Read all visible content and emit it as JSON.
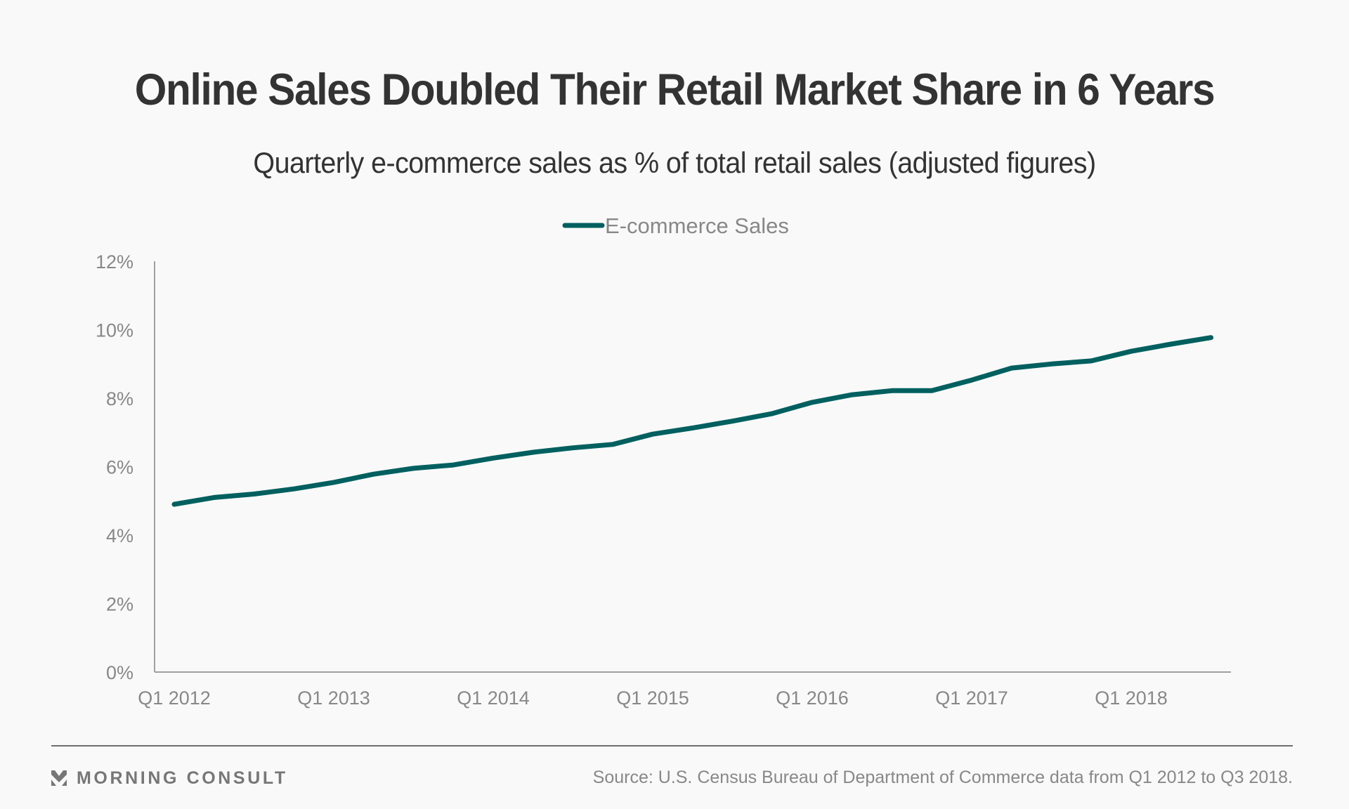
{
  "header": {
    "title": "Online Sales Doubled Their Retail Market Share in 6 Years",
    "subtitle": "Quarterly e-commerce sales as % of total retail sales (adjusted figures)"
  },
  "footer": {
    "brand": "MORNING CONSULT",
    "brand_icon": "morning-consult-chevron-logo",
    "source": "Source: U.S. Census Bureau of Department of Commerce data from Q1 2012 to Q3 2018."
  },
  "colors": {
    "series": "#005f5f",
    "axis": "#a0a0a0",
    "text": "#333333",
    "muted": "#888888",
    "background": "#f9f9f9"
  },
  "chart_data": {
    "type": "line",
    "title": "Online Sales Doubled Their Retail Market Share in 6 Years",
    "subtitle": "Quarterly e-commerce sales as % of total retail sales (adjusted figures)",
    "xlabel": "",
    "ylabel": "",
    "legend": {
      "position": "top-center",
      "entries": [
        "E-commerce Sales"
      ]
    },
    "grid": false,
    "ylim": [
      0,
      12
    ],
    "yticks": [
      "0%",
      "2%",
      "4%",
      "6%",
      "8%",
      "10%",
      "12%"
    ],
    "ytick_values": [
      0,
      2,
      4,
      6,
      8,
      10,
      12
    ],
    "xtick_labels": [
      "Q1 2012",
      "Q1 2013",
      "Q1 2014",
      "Q1 2015",
      "Q1 2016",
      "Q1 2017",
      "Q1 2018"
    ],
    "xtick_indices": [
      0,
      4,
      8,
      12,
      16,
      20,
      24
    ],
    "x": [
      "Q1 2012",
      "Q2 2012",
      "Q3 2012",
      "Q4 2012",
      "Q1 2013",
      "Q2 2013",
      "Q3 2013",
      "Q4 2013",
      "Q1 2014",
      "Q2 2014",
      "Q3 2014",
      "Q4 2014",
      "Q1 2015",
      "Q2 2015",
      "Q3 2015",
      "Q4 2015",
      "Q1 2016",
      "Q2 2016",
      "Q3 2016",
      "Q4 2016",
      "Q1 2017",
      "Q2 2017",
      "Q3 2017",
      "Q4 2017",
      "Q1 2018",
      "Q2 2018",
      "Q3 2018"
    ],
    "series": [
      {
        "name": "E-commerce Sales",
        "values": [
          4.9,
          5.1,
          5.2,
          5.35,
          5.54,
          5.78,
          5.95,
          6.05,
          6.25,
          6.42,
          6.55,
          6.65,
          6.95,
          7.13,
          7.33,
          7.55,
          7.88,
          8.1,
          8.22,
          8.22,
          8.53,
          8.88,
          9.0,
          9.09,
          9.37,
          9.58,
          9.77
        ]
      }
    ]
  }
}
